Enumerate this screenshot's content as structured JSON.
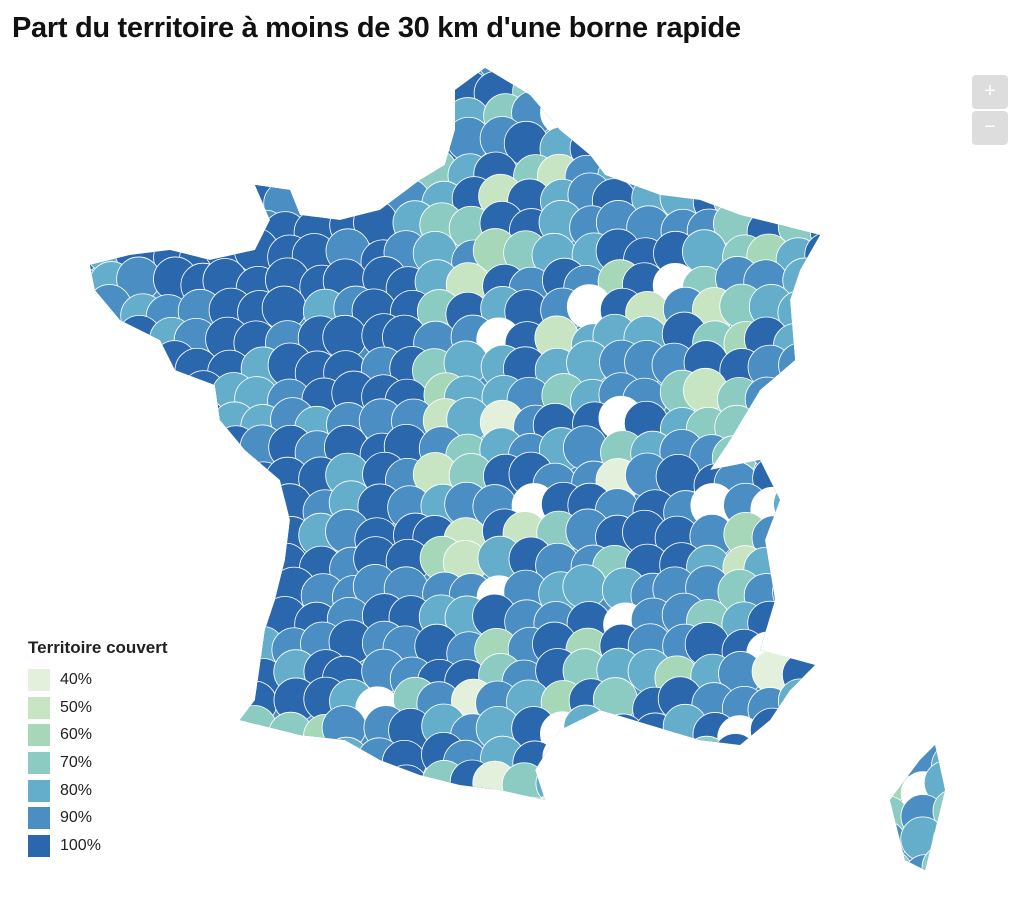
{
  "title": "Part du territoire à moins de 30 km d'une borne rapide",
  "zoom_controls": {
    "zoom_in": "+",
    "zoom_out": "−"
  },
  "legend": {
    "title": "Territoire couvert",
    "items": [
      {
        "label": "40%",
        "color": "#e3f1dc"
      },
      {
        "label": "50%",
        "color": "#c8e5c3"
      },
      {
        "label": "60%",
        "color": "#a6d7b8"
      },
      {
        "label": "70%",
        "color": "#8ccbc1"
      },
      {
        "label": "80%",
        "color": "#65aecb"
      },
      {
        "label": "90%",
        "color": "#4a8ec4"
      },
      {
        "label": "100%",
        "color": "#2b67ad"
      }
    ]
  }
}
